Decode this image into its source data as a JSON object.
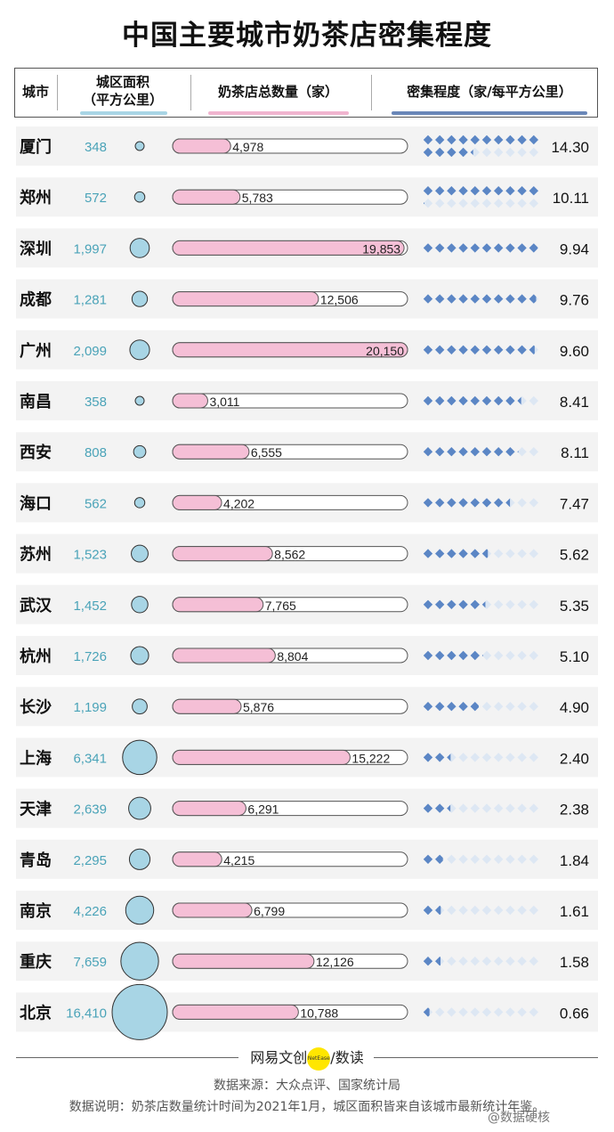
{
  "title": "中国主要城市奶茶店密集程度",
  "headers": {
    "city": "城市",
    "area_line1": "城区面积",
    "area_line2": "（平方公里）",
    "shops": "奶茶店总数量（家）",
    "density": "密集程度（家/每平方公里）"
  },
  "colors": {
    "area_circle": "#a8d5e5",
    "area_text": "#4aa3b8",
    "shops_bar": "#f5bfd6",
    "density_diamond": "#5b86c5",
    "density_diamond_empty": "#dde7f3",
    "row_band": "#f3f3f3",
    "area_header_bar": "#a8d5e5",
    "shops_header_bar": "#f0b4cf",
    "density_header_bar": "#6a87b8"
  },
  "chart_data": {
    "type": "table",
    "title": "中国主要城市奶茶店密集程度",
    "columns": [
      "城市",
      "城区面积（平方公里）",
      "奶茶店总数量（家）",
      "密集程度（家/每平方公里）"
    ],
    "rows": [
      {
        "city": "厦门",
        "area": "348",
        "area_value": 348,
        "shops": "4,978",
        "shops_value": 4978,
        "density": "14.30",
        "density_value": 14.3
      },
      {
        "city": "郑州",
        "area": "572",
        "area_value": 572,
        "shops": "5,783",
        "shops_value": 5783,
        "density": "10.11",
        "density_value": 10.11
      },
      {
        "city": "深圳",
        "area": "1,997",
        "area_value": 1997,
        "shops": "19,853",
        "shops_value": 19853,
        "density": "9.94",
        "density_value": 9.94
      },
      {
        "city": "成都",
        "area": "1,281",
        "area_value": 1281,
        "shops": "12,506",
        "shops_value": 12506,
        "density": "9.76",
        "density_value": 9.76
      },
      {
        "city": "广州",
        "area": "2,099",
        "area_value": 2099,
        "shops": "20,150",
        "shops_value": 20150,
        "density": "9.60",
        "density_value": 9.6
      },
      {
        "city": "南昌",
        "area": "358",
        "area_value": 358,
        "shops": "3,011",
        "shops_value": 3011,
        "density": "8.41",
        "density_value": 8.41
      },
      {
        "city": "西安",
        "area": "808",
        "area_value": 808,
        "shops": "6,555",
        "shops_value": 6555,
        "density": "8.11",
        "density_value": 8.11
      },
      {
        "city": "海口",
        "area": "562",
        "area_value": 562,
        "shops": "4,202",
        "shops_value": 4202,
        "density": "7.47",
        "density_value": 7.47
      },
      {
        "city": "苏州",
        "area": "1,523",
        "area_value": 1523,
        "shops": "8,562",
        "shops_value": 8562,
        "density": "5.62",
        "density_value": 5.62
      },
      {
        "city": "武汉",
        "area": "1,452",
        "area_value": 1452,
        "shops": "7,765",
        "shops_value": 7765,
        "density": "5.35",
        "density_value": 5.35
      },
      {
        "city": "杭州",
        "area": "1,726",
        "area_value": 1726,
        "shops": "8,804",
        "shops_value": 8804,
        "density": "5.10",
        "density_value": 5.1
      },
      {
        "city": "长沙",
        "area": "1,199",
        "area_value": 1199,
        "shops": "5,876",
        "shops_value": 5876,
        "density": "4.90",
        "density_value": 4.9
      },
      {
        "city": "上海",
        "area": "6,341",
        "area_value": 6341,
        "shops": "15,222",
        "shops_value": 15222,
        "density": "2.40",
        "density_value": 2.4
      },
      {
        "city": "天津",
        "area": "2,639",
        "area_value": 2639,
        "shops": "6,291",
        "shops_value": 6291,
        "density": "2.38",
        "density_value": 2.38
      },
      {
        "city": "青岛",
        "area": "2,295",
        "area_value": 2295,
        "shops": "4,215",
        "shops_value": 4215,
        "density": "1.84",
        "density_value": 1.84
      },
      {
        "city": "南京",
        "area": "4,226",
        "area_value": 4226,
        "shops": "6,799",
        "shops_value": 6799,
        "density": "1.61",
        "density_value": 1.61
      },
      {
        "city": "重庆",
        "area": "7,659",
        "area_value": 7659,
        "shops": "12,126",
        "shops_value": 12126,
        "density": "1.58",
        "density_value": 1.58
      },
      {
        "city": "北京",
        "area": "16,410",
        "area_value": 16410,
        "shops": "10,788",
        "shops_value": 10788,
        "density": "0.66",
        "density_value": 0.66
      }
    ]
  },
  "footer": {
    "brand_left": "网易文创",
    "brand_dot": "NetEase",
    "brand_right": "/数读",
    "source": "数据来源：大众点评、国家统计局",
    "note": "数据说明：奶茶店数量统计时间为2021年1月，城区面积皆来自该城市最新统计年鉴。",
    "watermark": "@数据硬核"
  }
}
